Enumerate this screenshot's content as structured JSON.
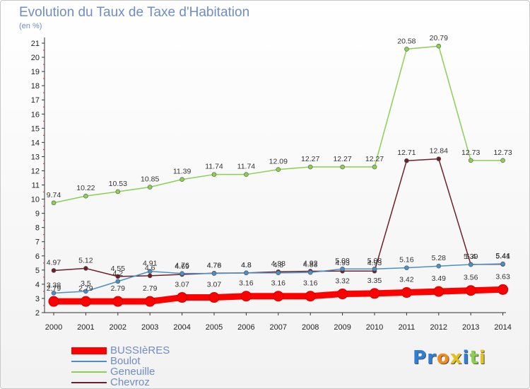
{
  "chart_data": {
    "type": "line",
    "title": "Evolution du Taux de Taxe d'Habitation",
    "subtitle": "(en %)",
    "ylim": [
      2,
      21
    ],
    "y_ticks": [
      2,
      3,
      4,
      5,
      6,
      7,
      8,
      9,
      10,
      11,
      12,
      13,
      14,
      15,
      16,
      17,
      18,
      19,
      20,
      21
    ],
    "grid": false,
    "legend_position": "bottom-left",
    "categories": [
      "2000",
      "2001",
      "2002",
      "2003",
      "2004",
      "2005",
      "2006",
      "2007",
      "2008",
      "2009",
      "2010",
      "2011",
      "2012",
      "2013",
      "2014"
    ],
    "series": [
      {
        "name": "BUSSIèRES",
        "color": "#ff0000",
        "values": [
          2.79,
          2.79,
          2.79,
          2.79,
          3.07,
          3.07,
          3.16,
          3.16,
          3.16,
          3.32,
          3.35,
          3.42,
          3.49,
          3.56,
          3.63
        ],
        "labels": [
          "2.79",
          "2.79",
          "2.79",
          "2.79",
          "3.07",
          "3.07",
          "3.16",
          "3.16",
          "3.16",
          "3.32",
          "3.35",
          "3.42",
          "3.49",
          "3.56",
          "3.63"
        ]
      },
      {
        "name": "Boulot",
        "color": "#4a90c8",
        "values": [
          3.38,
          3.5,
          4.2,
          4.91,
          4.76,
          4.76,
          4.8,
          4.8,
          4.83,
          5.08,
          5.08,
          5.16,
          5.28,
          5.39,
          5.44
        ],
        "labels": [
          "3.38",
          "3.5",
          "4.2",
          "4.91",
          "4.76",
          "4.76",
          "4.8",
          "4.8",
          "4.83",
          "5.08",
          "5.08",
          "5.16",
          "5.28",
          "5.39",
          "5.44"
        ]
      },
      {
        "name": "Geneuille",
        "color": "#8bd04e",
        "values": [
          9.74,
          10.22,
          10.53,
          10.85,
          11.39,
          11.74,
          11.74,
          12.09,
          12.27,
          12.27,
          12.27,
          20.58,
          20.79,
          12.73,
          12.73
        ],
        "labels": [
          "9.74",
          "10.22",
          "10.53",
          "10.85",
          "11.39",
          "11.74",
          "11.74",
          "12.09",
          "12.27",
          "12.27",
          "12.27",
          "20.58",
          "20.79",
          "12.73",
          "12.73"
        ]
      },
      {
        "name": "Chevroz",
        "color": "#6e1f2a",
        "values": [
          4.97,
          5.12,
          4.55,
          4.6,
          4.69,
          4.78,
          4.8,
          4.88,
          4.92,
          4.93,
          4.93,
          12.71,
          12.84,
          5.4,
          5.41
        ],
        "labels": [
          "4.97",
          "5.12",
          "4.55",
          "4.6",
          "4.69",
          "4.78",
          "4.8",
          "4.88",
          "4.92",
          "4.93",
          "4.93",
          "12.71",
          "12.84",
          "5.4",
          "5.41"
        ]
      }
    ]
  },
  "logo": {
    "text": "Proxiti"
  }
}
